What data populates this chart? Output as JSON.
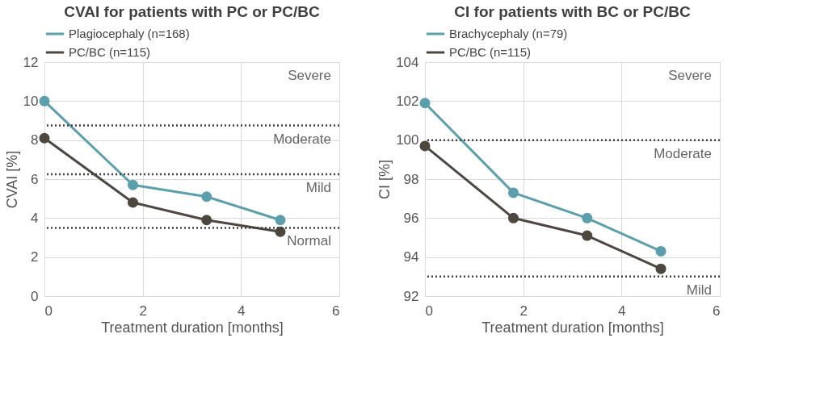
{
  "chart_data": [
    {
      "type": "line",
      "title": "CVAI for patients with PC or PC/BC",
      "xlabel": "Treatment duration [months]",
      "ylabel": "CVAI [%]",
      "xlim": [
        0,
        6
      ],
      "xticks": [
        0,
        2,
        4,
        6
      ],
      "ylim": [
        0,
        12
      ],
      "yticks": [
        0,
        2,
        4,
        6,
        8,
        10,
        12
      ],
      "grid": true,
      "legend": "top left",
      "marker": "circle",
      "line_style": "solid",
      "series": [
        {
          "name": "Plagiocephaly (n=168)",
          "color": "#5b9fad",
          "x": [
            0,
            1.8,
            3.3,
            4.8
          ],
          "values": [
            10,
            5.7,
            5.1,
            3.9
          ]
        },
        {
          "name": "PC/BC (n=115)",
          "color": "#4d4740",
          "x": [
            0,
            1.8,
            3.3,
            4.8
          ],
          "values": [
            8.1,
            4.8,
            3.9,
            3.3
          ]
        }
      ],
      "ref_lines": [
        {
          "axis": "y",
          "value": 8.75,
          "color": "#404040",
          "line_style": "dotted"
        },
        {
          "axis": "y",
          "value": 6.25,
          "color": "#404040",
          "line_style": "dotted"
        },
        {
          "axis": "y",
          "value": 3.5,
          "color": "#404040",
          "line_style": "dotted"
        }
      ],
      "annotations": [
        "Severe",
        "Moderate",
        "Mild",
        "Normal"
      ]
    },
    {
      "type": "line",
      "title": "CI for patients with BC or PC/BC",
      "xlabel": "Treatment duration [months]",
      "ylabel": "CI [%]",
      "xlim": [
        0,
        6
      ],
      "xticks": [
        0,
        2,
        4,
        6
      ],
      "ylim": [
        92,
        104
      ],
      "yticks": [
        92,
        94,
        96,
        98,
        100,
        102,
        104
      ],
      "grid": true,
      "legend": "top left",
      "marker": "circle",
      "line_style": "solid",
      "series": [
        {
          "name": "Brachycephaly (n=79)",
          "color": "#5b9fad",
          "x": [
            0,
            1.8,
            3.3,
            4.8
          ],
          "values": [
            101.9,
            97.3,
            96.0,
            94.3
          ]
        },
        {
          "name": "PC/BC (n=115)",
          "color": "#4d4740",
          "x": [
            0,
            1.8,
            3.3,
            4.8
          ],
          "values": [
            99.7,
            96.0,
            95.1,
            93.4
          ]
        }
      ],
      "ref_lines": [
        {
          "axis": "y",
          "value": 100,
          "color": "#404040",
          "line_style": "dotted"
        },
        {
          "axis": "y",
          "value": 93,
          "color": "#404040",
          "line_style": "dotted"
        }
      ],
      "annotations": [
        "Severe",
        "Moderate",
        "Mild"
      ]
    }
  ]
}
